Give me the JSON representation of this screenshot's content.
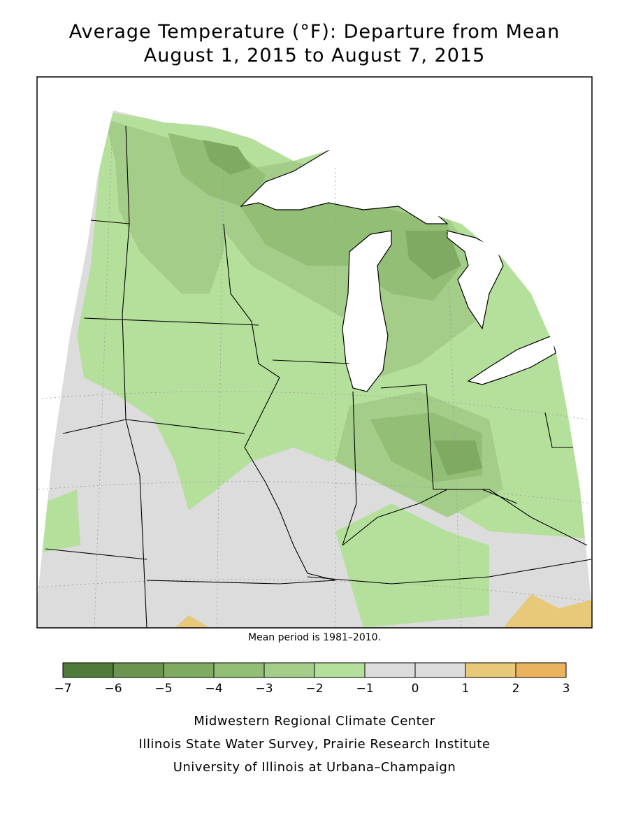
{
  "title": {
    "line1": "Average Temperature (°F): Departure from Mean",
    "line2": "August 1, 2015 to August 7, 2015"
  },
  "note": "Mean period is 1981–2010.",
  "legend": {
    "bins": [
      {
        "from": -7,
        "to": -6,
        "color": "#4f7a3a"
      },
      {
        "from": -6,
        "to": -5,
        "color": "#6a944f"
      },
      {
        "from": -5,
        "to": -4,
        "color": "#7faa62"
      },
      {
        "from": -4,
        "to": -3,
        "color": "#92be76"
      },
      {
        "from": -3,
        "to": -2,
        "color": "#a3cd89"
      },
      {
        "from": -2,
        "to": -1,
        "color": "#b5e09c"
      },
      {
        "from": -1,
        "to": 0,
        "color": "#dcdcdc"
      },
      {
        "from": 0,
        "to": 1,
        "color": "#dcdcdc"
      },
      {
        "from": 1,
        "to": 2,
        "color": "#e8c97a"
      },
      {
        "from": 2,
        "to": 3,
        "color": "#ebb35e"
      }
    ],
    "tick_labels": [
      "−7",
      "−6",
      "−5",
      "−4",
      "−3",
      "−2",
      "−1",
      "0",
      "1",
      "2",
      "3"
    ]
  },
  "credits": [
    "Midwestern Regional Climate Center",
    "Illinois State Water Survey, Prairie Research Institute",
    "University of Illinois at Urbana–Champaign"
  ]
}
